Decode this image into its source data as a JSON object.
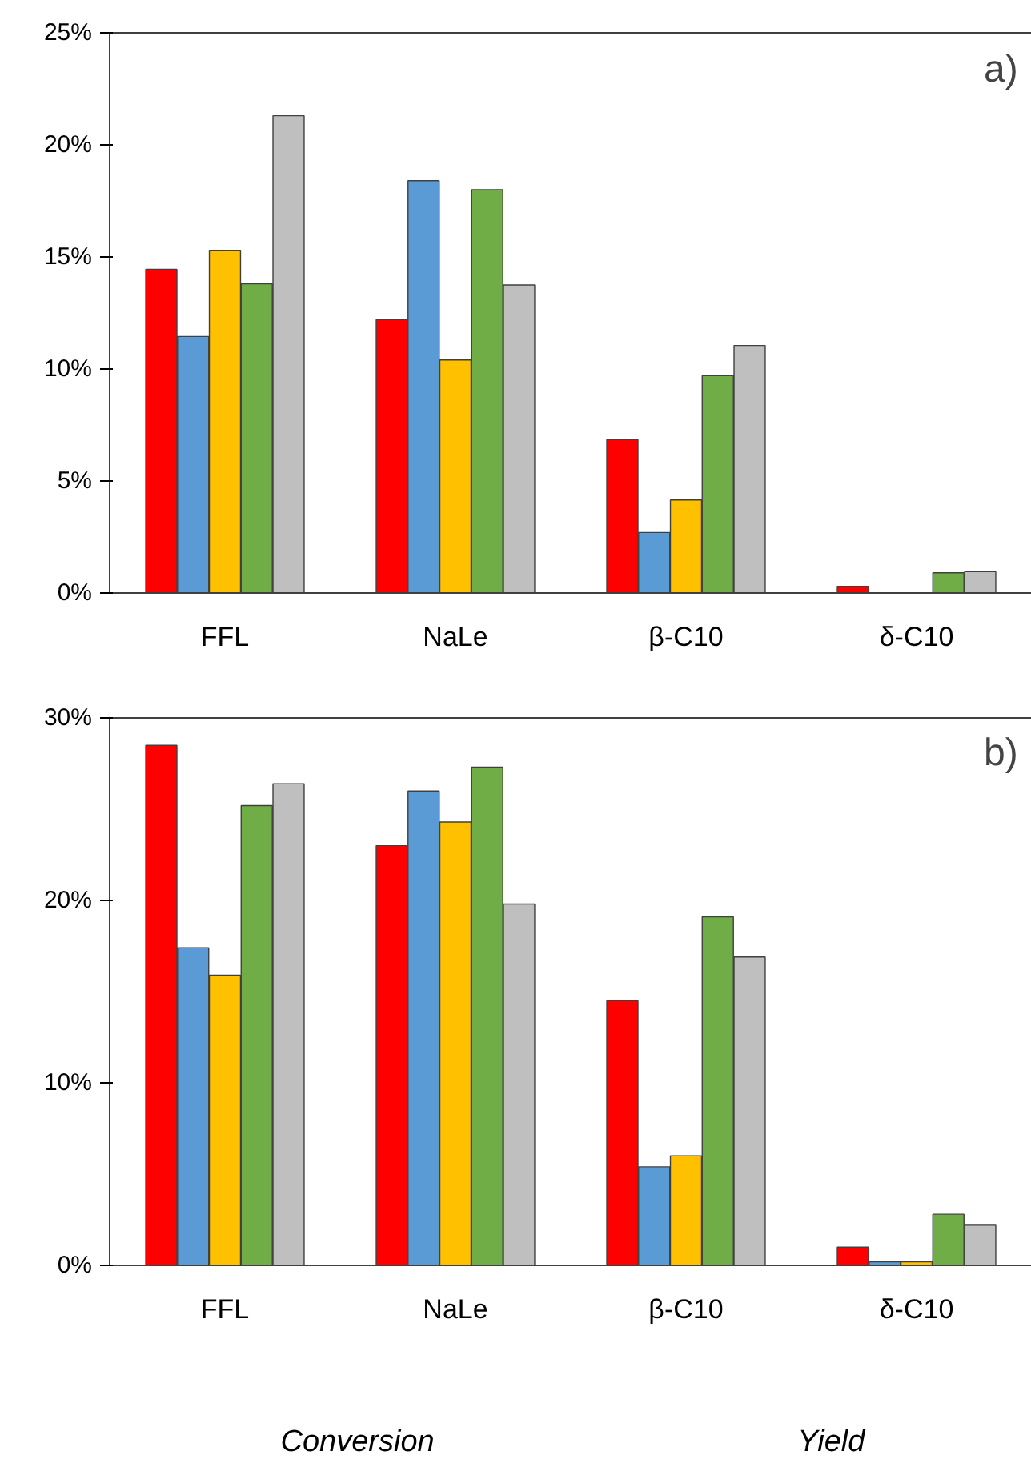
{
  "chart_data": [
    {
      "type": "bar",
      "categories": [
        "FFL",
        "NaLe",
        "β-C10",
        "δ-C10"
      ],
      "series": [
        {
          "color": "#ff0000",
          "values": [
            14.45,
            12.2,
            6.85,
            0.3
          ]
        },
        {
          "color": "#5b9bd5",
          "values": [
            11.45,
            18.4,
            2.7,
            null
          ]
        },
        {
          "color": "#ffc000",
          "values": [
            15.3,
            10.4,
            4.15,
            null
          ]
        },
        {
          "color": "#70ad47",
          "values": [
            13.8,
            18.0,
            9.7,
            0.9
          ]
        },
        {
          "color": "#bfbfbf",
          "values": [
            21.3,
            13.75,
            11.05,
            0.95
          ]
        }
      ],
      "ylim": [
        0,
        25
      ],
      "yticks": [
        {
          "value": 0,
          "label": "0%"
        },
        {
          "value": 5,
          "label": "5%"
        },
        {
          "value": 10,
          "label": "10%"
        },
        {
          "value": 15,
          "label": "15%"
        },
        {
          "value": 20,
          "label": "20%"
        },
        {
          "value": 25,
          "label": "25%"
        }
      ],
      "grid": false,
      "annotations": [
        "a)"
      ]
    },
    {
      "type": "bar",
      "categories": [
        "FFL",
        "NaLe",
        "β-C10",
        "δ-C10"
      ],
      "series": [
        {
          "color": "#ff0000",
          "values": [
            28.5,
            23.0,
            14.5,
            1.0
          ]
        },
        {
          "color": "#5b9bd5",
          "values": [
            17.4,
            26.0,
            5.4,
            0.2
          ]
        },
        {
          "color": "#ffc000",
          "values": [
            15.9,
            24.3,
            6.0,
            0.2
          ]
        },
        {
          "color": "#70ad47",
          "values": [
            25.2,
            27.3,
            19.1,
            2.8
          ]
        },
        {
          "color": "#bfbfbf",
          "values": [
            26.4,
            19.8,
            16.9,
            2.2
          ]
        }
      ],
      "ylim": [
        0,
        30
      ],
      "yticks": [
        {
          "value": 0,
          "label": "0%"
        },
        {
          "value": 10,
          "label": "10%"
        },
        {
          "value": 20,
          "label": "20%"
        },
        {
          "value": 30,
          "label": "30%"
        }
      ],
      "grid": false,
      "annotations": [
        "b)",
        "Conversion",
        "Yield"
      ]
    }
  ]
}
